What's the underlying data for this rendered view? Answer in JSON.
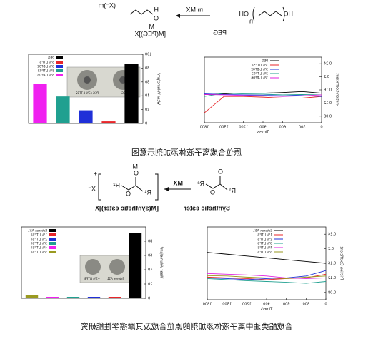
{
  "scheme_1": {
    "reactant_start": "HO",
    "reactant_end": "OH",
    "reactant_n": "n",
    "reactant_name": "PEG",
    "reagent": "m MX",
    "product_h": "H",
    "product_o": "O",
    "product_m": "M",
    "product_x": "(X⁻)m",
    "product_name": "[M(PEG)]X"
  },
  "caption_1": "原位合成离子液体添加剂示意图",
  "scheme_2": {
    "r1": "R¹",
    "o_ester": "O",
    "r2": "R²",
    "o_carbonyl": "O",
    "reactant_name": "Synthetic ester",
    "reagent": "MX",
    "product_m": "M",
    "product_r1": "R¹",
    "product_o": "O",
    "product_r2": "R²",
    "product_x": "X⁻",
    "charge": "+",
    "product_name": "[M(synthetic ester)]X"
  },
  "caption_2": "合成酯类油中离子液体添加剂的原位合成及其摩擦学性能研究",
  "chart_data": [
    {
      "type": "line",
      "xlabel": "Time/s",
      "ylabel": "Friction Coefficient",
      "x": [
        0,
        300,
        600,
        900,
        1200,
        1500,
        1800
      ],
      "xlim": [
        0,
        1800
      ],
      "xticks": [
        0,
        300,
        600,
        900,
        1200,
        1500,
        1800
      ],
      "ylim": [
        0.06,
        0.26
      ],
      "yticks": [
        0.08,
        0.12,
        0.16,
        0.2,
        0.24
      ],
      "series": [
        {
          "name": "PEG",
          "color": "#000000",
          "values": [
            0.15,
            0.155,
            0.152,
            0.15,
            0.15,
            0.148,
            0.146
          ]
        },
        {
          "name": "3% LiTFSI",
          "color": "#e8262a",
          "values": [
            0.14,
            0.135,
            0.135,
            0.138,
            0.14,
            0.14,
            0.09
          ]
        },
        {
          "name": "3% L-BF02",
          "color": "#2030d8",
          "values": [
            0.14,
            0.143,
            0.145,
            0.144,
            0.145,
            0.146,
            0.148
          ]
        },
        {
          "name": "3% L-TF02",
          "color": "#20a090",
          "values": [
            0.145,
            0.146,
            0.145,
            0.147,
            0.148,
            0.15,
            0.14
          ]
        },
        {
          "name": "3% L-PF06",
          "color": "#e020e0",
          "values": [
            0.145,
            0.142,
            0.14,
            0.142,
            0.143,
            0.145,
            0.146
          ]
        }
      ]
    },
    {
      "type": "bar",
      "ylabel": "Wear Volume/μm³",
      "categories": [
        "PEG",
        "3% LiTFSI",
        "3% L-BF02",
        "3% L-TF02",
        "3% L-PF06"
      ],
      "values": [
        86,
        3,
        19,
        39,
        57
      ],
      "colors": [
        "#000000",
        "#e8262a",
        "#2030d8",
        "#20a090",
        "#f020f0"
      ],
      "ylim": [
        0,
        100
      ],
      "yticks": [
        0,
        20,
        40,
        60,
        80,
        100
      ],
      "inset_labels": [
        "PEG",
        "PEG+3% L-TF02"
      ]
    },
    {
      "type": "line",
      "xlabel": "Time/s",
      "ylabel": "Friction Coefficient",
      "x": [
        0,
        300,
        600,
        900,
        1200,
        1500,
        1800
      ],
      "xlim": [
        0,
        1800
      ],
      "xticks": [
        0,
        300,
        600,
        900,
        1200,
        1500,
        1800
      ],
      "ylim": [
        0.06,
        0.26
      ],
      "yticks": [
        0.08,
        0.12,
        0.16,
        0.2,
        0.24
      ],
      "series": [
        {
          "name": "Esterex A51",
          "color": "#000000",
          "values": [
            0.16,
            0.165,
            0.17,
            0.175,
            0.18,
            0.185,
            0.19
          ]
        },
        {
          "name": "1% LiTFSI",
          "color": "#e8262a",
          "values": [
            0.13,
            0.12,
            0.118,
            0.115,
            0.118,
            0.12,
            0.122
          ]
        },
        {
          "name": "2% LiTFSI",
          "color": "#2030d8",
          "values": [
            0.14,
            0.125,
            0.12,
            0.118,
            0.115,
            0.118,
            0.12
          ]
        },
        {
          "name": "3% LiTFSI",
          "color": "#20a090",
          "values": [
            0.11,
            0.105,
            0.108,
            0.11,
            0.112,
            0.115,
            0.118
          ]
        },
        {
          "name": "4% LiTFSI",
          "color": "#e020e0",
          "values": [
            0.12,
            0.118,
            0.12,
            0.125,
            0.128,
            0.13,
            0.132
          ]
        },
        {
          "name": "5% LiTFSI",
          "color": "#9a9a20",
          "values": [
            0.125,
            0.122,
            0.118,
            0.12,
            0.122,
            0.125,
            0.126
          ]
        }
      ]
    },
    {
      "type": "bar",
      "ylabel": "Wear Volume/μm³",
      "categories": [
        "Esterex A51",
        "1% LiTFSI",
        "2% LiTFSI",
        "3% LiTFSI",
        "4% LiTFSI",
        "5% LiTFSI"
      ],
      "values": [
        91,
        2,
        2,
        2,
        2,
        4
      ],
      "colors": [
        "#000000",
        "#e8262a",
        "#2030d8",
        "#20a090",
        "#f020f0",
        "#9a9a20"
      ],
      "ylim": [
        0,
        100
      ],
      "yticks": [
        0,
        20,
        40,
        60,
        80
      ],
      "inset_labels": [
        "Esterex A51",
        "+3% LiTFSI"
      ]
    }
  ]
}
